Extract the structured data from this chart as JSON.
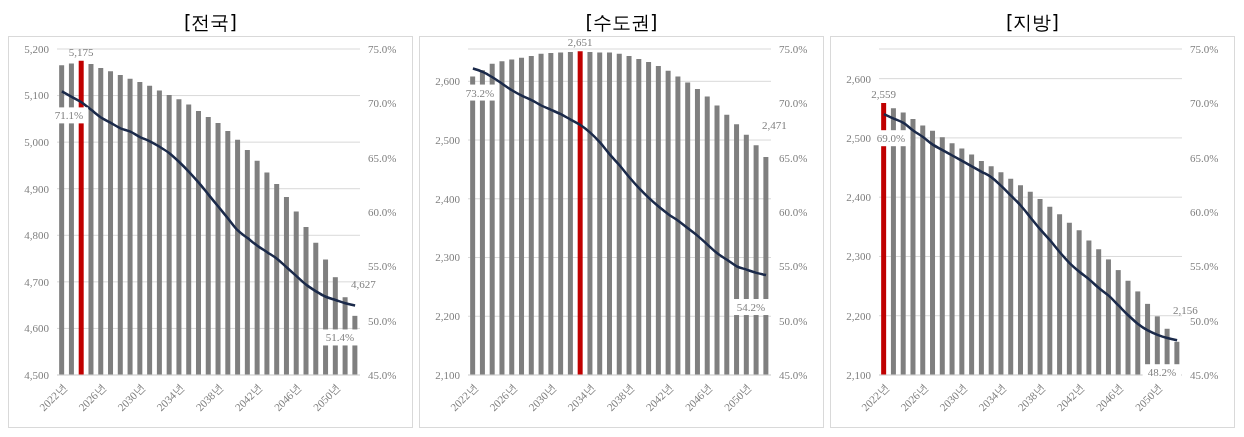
{
  "chart_data": [
    {
      "type": "bar",
      "title": "[전국]",
      "categories": [
        "2022년",
        null,
        null,
        null,
        "2026년",
        null,
        null,
        null,
        "2030년",
        null,
        null,
        null,
        "2034년",
        null,
        null,
        null,
        "2038년",
        null,
        null,
        null,
        "2042년",
        null,
        null,
        null,
        "2046년",
        null,
        null,
        null,
        "2050년",
        null,
        null
      ],
      "series": [
        {
          "type": "bar",
          "colors": [
            "#7f7f7f",
            "#7f7f7f",
            "#c00000",
            "#7f7f7f",
            "#7f7f7f",
            "#7f7f7f",
            "#7f7f7f",
            "#7f7f7f",
            "#7f7f7f",
            "#7f7f7f",
            "#7f7f7f",
            "#7f7f7f",
            "#7f7f7f",
            "#7f7f7f",
            "#7f7f7f",
            "#7f7f7f",
            "#7f7f7f",
            "#7f7f7f",
            "#7f7f7f",
            "#7f7f7f",
            "#7f7f7f",
            "#7f7f7f",
            "#7f7f7f",
            "#7f7f7f",
            "#7f7f7f",
            "#7f7f7f",
            "#7f7f7f",
            "#7f7f7f",
            "#7f7f7f",
            "#7f7f7f",
            "#7f7f7f"
          ],
          "values": [
            5165,
            5169,
            5175,
            5168,
            5159,
            5152,
            5144,
            5136,
            5129,
            5121,
            5111,
            5101,
            5092,
            5081,
            5067,
            5054,
            5041,
            5024,
            5005,
            4983,
            4960,
            4935,
            4910,
            4882,
            4851,
            4818,
            4784,
            4748,
            4710,
            4667,
            4627
          ],
          "value_labels": [
            null,
            null,
            "5,175",
            null,
            null,
            null,
            null,
            null,
            null,
            null,
            null,
            null,
            null,
            null,
            null,
            null,
            null,
            null,
            null,
            null,
            null,
            null,
            null,
            null,
            null,
            null,
            null,
            null,
            null,
            null,
            "4,627"
          ]
        },
        {
          "type": "line",
          "axis": "y2",
          "color": "#1b2a4a",
          "values": [
            71.1,
            70.6,
            70.1,
            69.4,
            68.7,
            68.2,
            67.7,
            67.4,
            66.9,
            66.5,
            66.0,
            65.4,
            64.6,
            63.7,
            62.7,
            61.6,
            60.5,
            59.4,
            58.3,
            57.6,
            56.9,
            56.3,
            55.7,
            54.9,
            54.1,
            53.3,
            52.7,
            52.2,
            51.9,
            51.6,
            51.4
          ],
          "value_labels": [
            "71.1%",
            null,
            null,
            null,
            null,
            null,
            null,
            null,
            null,
            null,
            null,
            null,
            null,
            null,
            null,
            null,
            null,
            null,
            null,
            null,
            null,
            null,
            null,
            null,
            null,
            null,
            null,
            null,
            null,
            null,
            "51.4%"
          ]
        }
      ],
      "ylim": [
        4500,
        5200
      ],
      "yticks": [
        {
          "value": 4500,
          "label": "4,500"
        },
        {
          "value": 4600,
          "label": "4,600"
        },
        {
          "value": 4700,
          "label": "4,700"
        },
        {
          "value": 4800,
          "label": "4,800"
        },
        {
          "value": 4900,
          "label": "4,900"
        },
        {
          "value": 5000,
          "label": "5,000"
        },
        {
          "value": 5100,
          "label": "5,100"
        },
        {
          "value": 5200,
          "label": "5,200"
        }
      ],
      "y2lim": [
        45,
        75
      ],
      "y2ticks": [
        {
          "value": 45,
          "label": "45.0%"
        },
        {
          "value": 50,
          "label": "50.0%"
        },
        {
          "value": 55,
          "label": "55.0%"
        },
        {
          "value": 60,
          "label": "60.0%"
        },
        {
          "value": 65,
          "label": "65.0%"
        },
        {
          "value": 70,
          "label": "70.0%"
        },
        {
          "value": 75,
          "label": "75.0%"
        }
      ],
      "grid": "y",
      "marker": "none"
    },
    {
      "type": "bar",
      "title": "[수도권]",
      "categories": [
        "2022년",
        null,
        null,
        null,
        "2026년",
        null,
        null,
        null,
        "2030년",
        null,
        null,
        null,
        "2034년",
        null,
        null,
        null,
        "2038년",
        null,
        null,
        null,
        "2042년",
        null,
        null,
        null,
        "2046년",
        null,
        null,
        null,
        "2050년",
        null,
        null
      ],
      "series": [
        {
          "type": "bar",
          "colors": [
            "#7f7f7f",
            "#7f7f7f",
            "#7f7f7f",
            "#7f7f7f",
            "#7f7f7f",
            "#7f7f7f",
            "#7f7f7f",
            "#7f7f7f",
            "#7f7f7f",
            "#7f7f7f",
            "#7f7f7f",
            "#c00000",
            "#7f7f7f",
            "#7f7f7f",
            "#7f7f7f",
            "#7f7f7f",
            "#7f7f7f",
            "#7f7f7f",
            "#7f7f7f",
            "#7f7f7f",
            "#7f7f7f",
            "#7f7f7f",
            "#7f7f7f",
            "#7f7f7f",
            "#7f7f7f",
            "#7f7f7f",
            "#7f7f7f",
            "#7f7f7f",
            "#7f7f7f",
            "#7f7f7f",
            "#7f7f7f"
          ],
          "values": [
            2608,
            2619,
            2630,
            2634,
            2637,
            2640,
            2643,
            2647,
            2648,
            2649,
            2650,
            2651,
            2650,
            2649,
            2649,
            2647,
            2643,
            2638,
            2633,
            2626,
            2618,
            2608,
            2598,
            2587,
            2574,
            2559,
            2543,
            2527,
            2509,
            2491,
            2471
          ],
          "value_labels": [
            null,
            null,
            null,
            null,
            null,
            null,
            null,
            null,
            null,
            null,
            null,
            "2,651",
            null,
            null,
            null,
            null,
            null,
            null,
            null,
            null,
            null,
            null,
            null,
            null,
            null,
            null,
            null,
            null,
            null,
            null,
            "2,471"
          ]
        },
        {
          "type": "line",
          "axis": "y2",
          "color": "#1b2a4a",
          "values": [
            73.2,
            72.9,
            72.4,
            71.8,
            71.2,
            70.7,
            70.3,
            69.8,
            69.4,
            69.0,
            68.5,
            68.0,
            67.3,
            66.4,
            65.3,
            64.3,
            63.2,
            62.2,
            61.3,
            60.5,
            59.8,
            59.2,
            58.5,
            57.8,
            57.0,
            56.2,
            55.6,
            55.0,
            54.7,
            54.4,
            54.2
          ],
          "value_labels": [
            "73.2%",
            null,
            null,
            null,
            null,
            null,
            null,
            null,
            null,
            null,
            null,
            null,
            null,
            null,
            null,
            null,
            null,
            null,
            null,
            null,
            null,
            null,
            null,
            null,
            null,
            null,
            null,
            null,
            null,
            null,
            "54.2%"
          ]
        }
      ],
      "ylim": [
        2100,
        2655
      ],
      "yticks": [
        {
          "value": 2100,
          "label": "2,100"
        },
        {
          "value": 2200,
          "label": "2,200"
        },
        {
          "value": 2300,
          "label": "2,300"
        },
        {
          "value": 2400,
          "label": "2,400"
        },
        {
          "value": 2500,
          "label": "2,500"
        },
        {
          "value": 2600,
          "label": "2,600"
        }
      ],
      "y2lim": [
        45,
        75
      ],
      "y2ticks": [
        {
          "value": 45,
          "label": "45.0%"
        },
        {
          "value": 50,
          "label": "50.0%"
        },
        {
          "value": 55,
          "label": "55.0%"
        },
        {
          "value": 60,
          "label": "60.0%"
        },
        {
          "value": 65,
          "label": "65.0%"
        },
        {
          "value": 70,
          "label": "70.0%"
        },
        {
          "value": 75,
          "label": "75.0%"
        }
      ],
      "grid": "y",
      "marker": "none"
    },
    {
      "type": "bar",
      "title": "[지방]",
      "categories": [
        "2022년",
        null,
        null,
        null,
        "2026년",
        null,
        null,
        null,
        "2030년",
        null,
        null,
        null,
        "2034년",
        null,
        null,
        null,
        "2038년",
        null,
        null,
        null,
        "2042년",
        null,
        null,
        null,
        "2046년",
        null,
        null,
        null,
        "2050년",
        null,
        null
      ],
      "series": [
        {
          "type": "bar",
          "colors": [
            "#c00000",
            "#7f7f7f",
            "#7f7f7f",
            "#7f7f7f",
            "#7f7f7f",
            "#7f7f7f",
            "#7f7f7f",
            "#7f7f7f",
            "#7f7f7f",
            "#7f7f7f",
            "#7f7f7f",
            "#7f7f7f",
            "#7f7f7f",
            "#7f7f7f",
            "#7f7f7f",
            "#7f7f7f",
            "#7f7f7f",
            "#7f7f7f",
            "#7f7f7f",
            "#7f7f7f",
            "#7f7f7f",
            "#7f7f7f",
            "#7f7f7f",
            "#7f7f7f",
            "#7f7f7f",
            "#7f7f7f",
            "#7f7f7f",
            "#7f7f7f",
            "#7f7f7f",
            "#7f7f7f",
            "#7f7f7f"
          ],
          "values": [
            2559,
            2550,
            2543,
            2532,
            2521,
            2512,
            2501,
            2491,
            2482,
            2472,
            2461,
            2452,
            2442,
            2431,
            2420,
            2409,
            2397,
            2384,
            2371,
            2357,
            2344,
            2327,
            2312,
            2295,
            2277,
            2259,
            2241,
            2220,
            2199,
            2178,
            2156
          ],
          "value_labels": [
            "2,559",
            null,
            null,
            null,
            null,
            null,
            null,
            null,
            null,
            null,
            null,
            null,
            null,
            null,
            null,
            null,
            null,
            null,
            null,
            null,
            null,
            null,
            null,
            null,
            null,
            null,
            null,
            null,
            null,
            null,
            "2,156"
          ]
        },
        {
          "type": "line",
          "axis": "y2",
          "color": "#1b2a4a",
          "values": [
            69.0,
            68.6,
            68.2,
            67.5,
            66.9,
            66.2,
            65.7,
            65.2,
            64.7,
            64.2,
            63.7,
            63.2,
            62.4,
            61.5,
            60.6,
            59.5,
            58.4,
            57.4,
            56.3,
            55.3,
            54.5,
            53.8,
            53.0,
            52.3,
            51.4,
            50.5,
            49.7,
            49.1,
            48.7,
            48.4,
            48.2
          ],
          "value_labels": [
            "69.0%",
            null,
            null,
            null,
            null,
            null,
            null,
            null,
            null,
            null,
            null,
            null,
            null,
            null,
            null,
            null,
            null,
            null,
            null,
            null,
            null,
            null,
            null,
            null,
            null,
            null,
            null,
            null,
            null,
            null,
            "48.2%"
          ]
        }
      ],
      "ylim": [
        2100,
        2650
      ],
      "yticks": [
        {
          "value": 2100,
          "label": "2,100"
        },
        {
          "value": 2200,
          "label": "2,200"
        },
        {
          "value": 2300,
          "label": "2,300"
        },
        {
          "value": 2400,
          "label": "2,400"
        },
        {
          "value": 2500,
          "label": "2,500"
        },
        {
          "value": 2600,
          "label": "2,600"
        }
      ],
      "y2lim": [
        45,
        75
      ],
      "y2ticks": [
        {
          "value": 45,
          "label": "45.0%"
        },
        {
          "value": 50,
          "label": "50.0%"
        },
        {
          "value": 55,
          "label": "55.0%"
        },
        {
          "value": 60,
          "label": "60.0%"
        },
        {
          "value": 65,
          "label": "65.0%"
        },
        {
          "value": 70,
          "label": "70.0%"
        },
        {
          "value": 75,
          "label": "75.0%"
        }
      ],
      "grid": "y",
      "marker": "none"
    }
  ]
}
